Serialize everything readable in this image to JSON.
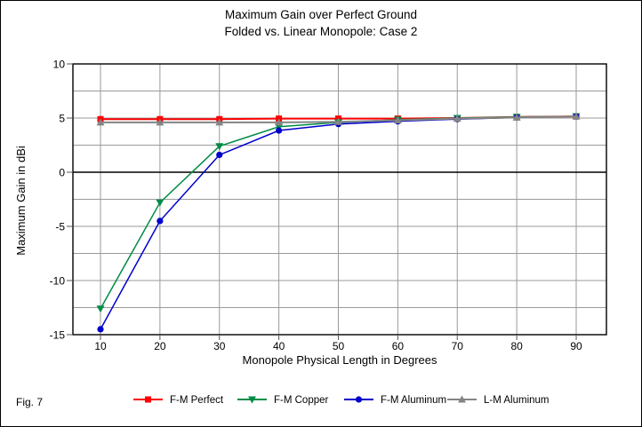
{
  "figure": {
    "label": "Fig. 7"
  },
  "title": {
    "line1": "Maximum Gain over Perfect Ground",
    "line2": "Folded vs. Linear Monopole: Case 2"
  },
  "chart_data": {
    "type": "line",
    "x": [
      10,
      20,
      30,
      40,
      50,
      60,
      70,
      80,
      90
    ],
    "xlabel": "Monopole Physical Length in Degrees",
    "ylabel": "Maximum Gain in dBi",
    "ylim": [
      -15,
      10
    ],
    "y_major_ticks": [
      10,
      5,
      0,
      -5,
      -10,
      -15
    ],
    "y_minor_step": 2.5,
    "grid": true,
    "legend_position": "bottom",
    "series": [
      {
        "name": "F-M Perfect",
        "color": "#ff0000",
        "marker": "square",
        "values": [
          4.9,
          4.9,
          4.9,
          4.95,
          4.95,
          4.95,
          5.0,
          5.1,
          5.15
        ]
      },
      {
        "name": "F-M Copper",
        "color": "#008c46",
        "marker": "triangle-down",
        "values": [
          -12.6,
          -2.8,
          2.4,
          4.2,
          4.6,
          4.85,
          5.0,
          5.1,
          5.15
        ]
      },
      {
        "name": "F-M Aluminum",
        "color": "#0000cc",
        "marker": "circle",
        "values": [
          -14.5,
          -4.5,
          1.6,
          3.85,
          4.45,
          4.7,
          4.9,
          5.05,
          5.15
        ]
      },
      {
        "name": "L-M Aluminum",
        "color": "#848484",
        "marker": "triangle-up",
        "values": [
          4.6,
          4.6,
          4.6,
          4.6,
          4.65,
          4.8,
          4.95,
          5.05,
          5.15
        ]
      }
    ]
  }
}
